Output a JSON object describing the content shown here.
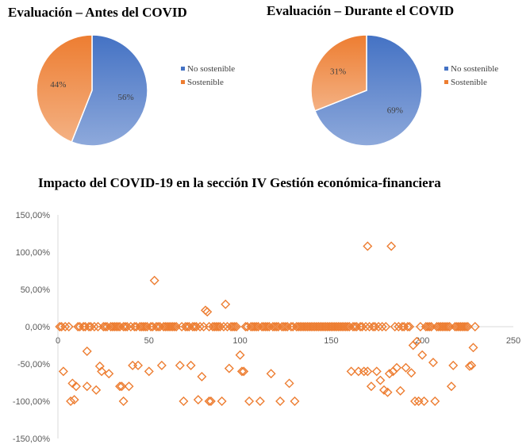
{
  "chart_data": [
    {
      "type": "pie",
      "title": "Evaluación – Antes del COVID",
      "slices": [
        {
          "label": "No sostenible",
          "value": 56,
          "display": "56%"
        },
        {
          "label": "Sostenible",
          "value": 44,
          "display": "44%"
        }
      ],
      "legend_position": "right"
    },
    {
      "type": "pie",
      "title": "Evaluación – Durante el COVID",
      "slices": [
        {
          "label": "No sostenible",
          "value": 69,
          "display": "69%"
        },
        {
          "label": "Sostenible",
          "value": 31,
          "display": "31%"
        }
      ],
      "legend_position": "right"
    },
    {
      "type": "scatter",
      "title": "Impacto del COVID-19 en la sección IV Gestión económica-financiera",
      "xlabel": "",
      "ylabel": "",
      "xlim": [
        0,
        250
      ],
      "ylim": [
        -150,
        150
      ],
      "xticks": [
        0,
        50,
        100,
        150,
        200,
        250
      ],
      "yticks": [
        150,
        100,
        50,
        0,
        -50,
        -100,
        -150
      ],
      "xtick_labels": [
        "0",
        "50",
        "100",
        "150",
        "200",
        "250"
      ],
      "ytick_labels": [
        "150,00%",
        "100,00%",
        "50,00%",
        "0,00%",
        "-50,00%",
        "-100,00%",
        "-150,00%"
      ],
      "marker": "diamond-open",
      "points": [
        [
          1,
          0
        ],
        [
          2,
          0
        ],
        [
          3,
          -60
        ],
        [
          4,
          0
        ],
        [
          6,
          0
        ],
        [
          7,
          -100
        ],
        [
          8,
          -76
        ],
        [
          9,
          -98
        ],
        [
          10,
          -80
        ],
        [
          11,
          0
        ],
        [
          12,
          0
        ],
        [
          14,
          0
        ],
        [
          15,
          0
        ],
        [
          16,
          -80
        ],
        [
          16,
          -33
        ],
        [
          17,
          0
        ],
        [
          18,
          0
        ],
        [
          20,
          0
        ],
        [
          21,
          -85
        ],
        [
          22,
          0
        ],
        [
          23,
          -53
        ],
        [
          24,
          -60
        ],
        [
          25,
          0
        ],
        [
          26,
          0
        ],
        [
          27,
          0
        ],
        [
          28,
          -63
        ],
        [
          29,
          0
        ],
        [
          30,
          0
        ],
        [
          31,
          0
        ],
        [
          32,
          0
        ],
        [
          33,
          0
        ],
        [
          34,
          0
        ],
        [
          34,
          -80
        ],
        [
          35,
          -80
        ],
        [
          36,
          -100
        ],
        [
          36,
          0
        ],
        [
          37,
          0
        ],
        [
          38,
          0
        ],
        [
          39,
          -80
        ],
        [
          40,
          0
        ],
        [
          41,
          -52
        ],
        [
          42,
          0
        ],
        [
          43,
          0
        ],
        [
          44,
          -52
        ],
        [
          45,
          0
        ],
        [
          46,
          0
        ],
        [
          47,
          0
        ],
        [
          48,
          0
        ],
        [
          49,
          0
        ],
        [
          50,
          -60
        ],
        [
          51,
          0
        ],
        [
          52,
          0
        ],
        [
          53,
          62
        ],
        [
          54,
          0
        ],
        [
          55,
          0
        ],
        [
          56,
          0
        ],
        [
          57,
          -52
        ],
        [
          58,
          0
        ],
        [
          59,
          0
        ],
        [
          60,
          0
        ],
        [
          61,
          0
        ],
        [
          62,
          0
        ],
        [
          63,
          0
        ],
        [
          64,
          0
        ],
        [
          65,
          0
        ],
        [
          67,
          -52
        ],
        [
          68,
          0
        ],
        [
          69,
          -100
        ],
        [
          70,
          0
        ],
        [
          71,
          0
        ],
        [
          72,
          0
        ],
        [
          73,
          -52
        ],
        [
          74,
          0
        ],
        [
          75,
          0
        ],
        [
          76,
          0
        ],
        [
          77,
          -98
        ],
        [
          78,
          0
        ],
        [
          79,
          -67
        ],
        [
          80,
          0
        ],
        [
          81,
          22
        ],
        [
          82,
          20
        ],
        [
          83,
          0
        ],
        [
          83,
          -100
        ],
        [
          84,
          -100
        ],
        [
          85,
          0
        ],
        [
          86,
          0
        ],
        [
          87,
          0
        ],
        [
          88,
          0
        ],
        [
          89,
          0
        ],
        [
          90,
          -100
        ],
        [
          91,
          0
        ],
        [
          92,
          30
        ],
        [
          93,
          0
        ],
        [
          94,
          -56
        ],
        [
          95,
          0
        ],
        [
          96,
          0
        ],
        [
          97,
          0
        ],
        [
          98,
          0
        ],
        [
          100,
          -38
        ],
        [
          101,
          -60
        ],
        [
          102,
          -60
        ],
        [
          103,
          0
        ],
        [
          104,
          0
        ],
        [
          105,
          -100
        ],
        [
          106,
          0
        ],
        [
          107,
          0
        ],
        [
          108,
          0
        ],
        [
          109,
          0
        ],
        [
          110,
          0
        ],
        [
          111,
          -100
        ],
        [
          112,
          0
        ],
        [
          113,
          0
        ],
        [
          114,
          0
        ],
        [
          115,
          0
        ],
        [
          116,
          0
        ],
        [
          117,
          -63
        ],
        [
          118,
          0
        ],
        [
          119,
          0
        ],
        [
          120,
          0
        ],
        [
          121,
          0
        ],
        [
          122,
          -100
        ],
        [
          123,
          0
        ],
        [
          124,
          0
        ],
        [
          125,
          0
        ],
        [
          126,
          0
        ],
        [
          127,
          -76
        ],
        [
          128,
          0
        ],
        [
          129,
          0
        ],
        [
          130,
          -100
        ],
        [
          131,
          0
        ],
        [
          132,
          0
        ],
        [
          133,
          0
        ],
        [
          134,
          0
        ],
        [
          135,
          0
        ],
        [
          136,
          0
        ],
        [
          137,
          0
        ],
        [
          138,
          0
        ],
        [
          139,
          0
        ],
        [
          140,
          0
        ],
        [
          141,
          0
        ],
        [
          142,
          0
        ],
        [
          143,
          0
        ],
        [
          144,
          0
        ],
        [
          145,
          0
        ],
        [
          146,
          0
        ],
        [
          147,
          0
        ],
        [
          148,
          0
        ],
        [
          149,
          0
        ],
        [
          150,
          0
        ],
        [
          151,
          0
        ],
        [
          152,
          0
        ],
        [
          153,
          0
        ],
        [
          154,
          0
        ],
        [
          155,
          0
        ],
        [
          156,
          0
        ],
        [
          157,
          0
        ],
        [
          158,
          0
        ],
        [
          159,
          0
        ],
        [
          160,
          0
        ],
        [
          161,
          -60
        ],
        [
          162,
          0
        ],
        [
          163,
          0
        ],
        [
          164,
          0
        ],
        [
          165,
          -60
        ],
        [
          166,
          0
        ],
        [
          167,
          0
        ],
        [
          168,
          -60
        ],
        [
          169,
          0
        ],
        [
          170,
          108
        ],
        [
          170,
          -60
        ],
        [
          171,
          0
        ],
        [
          172,
          -80
        ],
        [
          173,
          0
        ],
        [
          174,
          0
        ],
        [
          175,
          -60
        ],
        [
          176,
          0
        ],
        [
          177,
          -72
        ],
        [
          178,
          0
        ],
        [
          179,
          -85
        ],
        [
          180,
          0
        ],
        [
          181,
          -88
        ],
        [
          182,
          -63
        ],
        [
          183,
          108
        ],
        [
          184,
          -60
        ],
        [
          185,
          0
        ],
        [
          186,
          -55
        ],
        [
          187,
          0
        ],
        [
          188,
          -86
        ],
        [
          189,
          0
        ],
        [
          190,
          0
        ],
        [
          191,
          -55
        ],
        [
          192,
          0
        ],
        [
          193,
          0
        ],
        [
          194,
          -62
        ],
        [
          195,
          -25
        ],
        [
          196,
          -100
        ],
        [
          197,
          -20
        ],
        [
          198,
          -100
        ],
        [
          199,
          0
        ],
        [
          200,
          -38
        ],
        [
          201,
          -100
        ],
        [
          202,
          0
        ],
        [
          203,
          0
        ],
        [
          204,
          0
        ],
        [
          205,
          0
        ],
        [
          206,
          -48
        ],
        [
          207,
          -100
        ],
        [
          208,
          0
        ],
        [
          209,
          0
        ],
        [
          210,
          0
        ],
        [
          211,
          0
        ],
        [
          212,
          0
        ],
        [
          213,
          0
        ],
        [
          214,
          0
        ],
        [
          215,
          0
        ],
        [
          216,
          -80
        ],
        [
          217,
          -52
        ],
        [
          218,
          0
        ],
        [
          219,
          0
        ],
        [
          220,
          0
        ],
        [
          221,
          0
        ],
        [
          222,
          0
        ],
        [
          223,
          0
        ],
        [
          224,
          0
        ],
        [
          225,
          0
        ],
        [
          226,
          -53
        ],
        [
          227,
          -52
        ],
        [
          228,
          -28
        ],
        [
          229,
          0
        ]
      ]
    }
  ]
}
